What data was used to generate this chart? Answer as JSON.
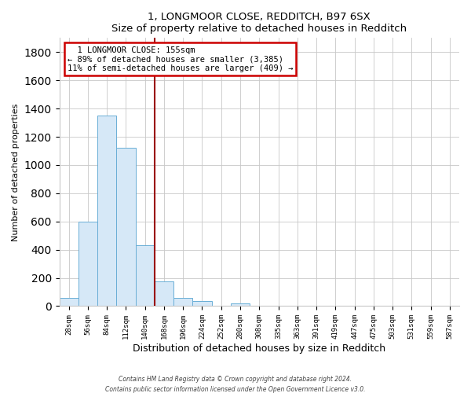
{
  "title": "1, LONGMOOR CLOSE, REDDITCH, B97 6SX",
  "subtitle": "Size of property relative to detached houses in Redditch",
  "xlabel": "Distribution of detached houses by size in Redditch",
  "ylabel": "Number of detached properties",
  "bin_labels": [
    "28sqm",
    "56sqm",
    "84sqm",
    "112sqm",
    "140sqm",
    "168sqm",
    "196sqm",
    "224sqm",
    "252sqm",
    "280sqm",
    "308sqm",
    "335sqm",
    "363sqm",
    "391sqm",
    "419sqm",
    "447sqm",
    "475sqm",
    "503sqm",
    "531sqm",
    "559sqm",
    "587sqm"
  ],
  "bar_values": [
    60,
    600,
    1350,
    1120,
    430,
    175,
    60,
    35,
    0,
    20,
    0,
    0,
    0,
    0,
    0,
    0,
    0,
    0,
    0,
    0,
    0
  ],
  "bar_color": "#d6e8f7",
  "bar_edge_color": "#6aaed6",
  "ylim": [
    0,
    1900
  ],
  "yticks": [
    0,
    200,
    400,
    600,
    800,
    1000,
    1200,
    1400,
    1600,
    1800
  ],
  "property_line_color": "#990000",
  "annotation_title": "1 LONGMOOR CLOSE: 155sqm",
  "annotation_line1": "← 89% of detached houses are smaller (3,385)",
  "annotation_line2": "11% of semi-detached houses are larger (409) →",
  "annotation_box_color": "#ffffff",
  "annotation_box_edge": "#cc0000",
  "footer1": "Contains HM Land Registry data © Crown copyright and database right 2024.",
  "footer2": "Contains public sector information licensed under the Open Government Licence v3.0.",
  "background_color": "#ffffff",
  "grid_color": "#c8c8c8"
}
